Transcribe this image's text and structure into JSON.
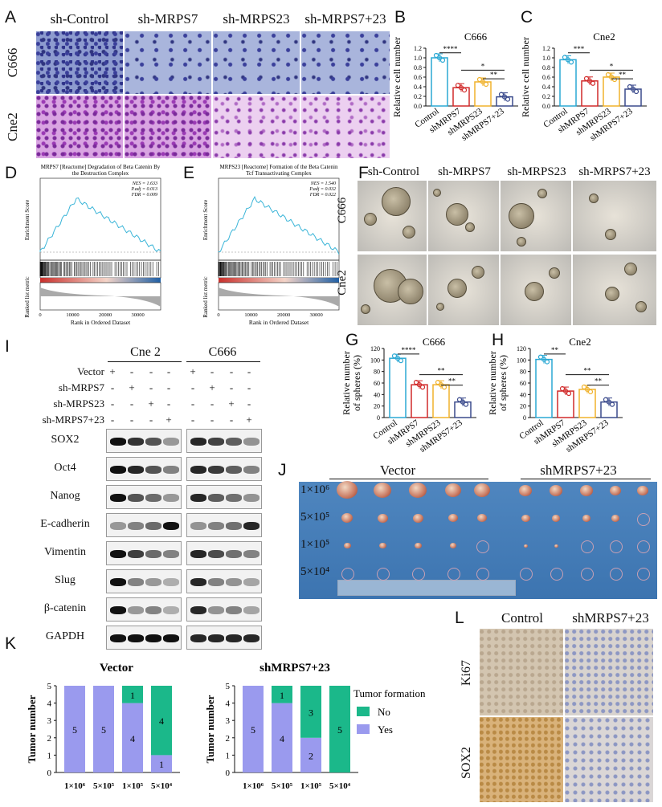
{
  "panels": {
    "A": {
      "letter": "A",
      "cols": [
        "sh-Control",
        "sh-MRPS7",
        "sh-MRPS23",
        "sh-MRPS7+23"
      ],
      "rows": [
        "C666",
        "Cne2"
      ]
    },
    "B": {
      "letter": "B",
      "title": "C666",
      "ylabel": "Relative cell number",
      "yticks": [
        "0.0",
        "0.2",
        "0.4",
        "0.6",
        "0.8",
        "1.0",
        "1.2"
      ],
      "categories": [
        "Control",
        "shMRPS7",
        "shMRPS23",
        "shMRPS7+23"
      ],
      "values": [
        1.0,
        0.38,
        0.5,
        0.19
      ],
      "sig": [
        "****",
        "*",
        "**"
      ]
    },
    "C": {
      "letter": "C",
      "title": "Cne2",
      "ylabel": "Relative cell number",
      "yticks": [
        "0.0",
        "0.2",
        "0.4",
        "0.6",
        "0.8",
        "1.0",
        "1.2"
      ],
      "categories": [
        "Control",
        "shMRPS7",
        "shMRPS23",
        "shMRPS7+23"
      ],
      "values": [
        0.96,
        0.52,
        0.6,
        0.35
      ],
      "sig": [
        "***",
        "*",
        "**"
      ]
    },
    "D": {
      "letter": "D",
      "title1": "MRPS7 [Reactome] Degradation of Beta Catenin By",
      "title2": "the Destruction Complex",
      "nes": "NES = 1.633",
      "padj": "P.adj = 0.013",
      "fdr": "FDR = 0.009",
      "ylabel_top": "Enrichment Score",
      "ylabel_bot": "Ranked list metric",
      "xlabel": "Rank in Ordered Dataset"
    },
    "E": {
      "letter": "E",
      "title1": "MRPS23 [Reactome] Formation of the Beta Catenin",
      "title2": "Tcf Transactivating Complex",
      "nes": "NES = 1.540",
      "padj": "P.adj = 0.032",
      "fdr": "FDR = 0.022",
      "ylabel_top": "Enrichment Score",
      "ylabel_bot": "Ranked list metric",
      "xlabel": "Rank in Ordered Dataset"
    },
    "F": {
      "letter": "F",
      "cols": [
        "sh-Control",
        "sh-MRPS7",
        "sh-MRPS23",
        "sh-MRPS7+23"
      ],
      "rows": [
        "C666",
        "Cne2"
      ]
    },
    "G": {
      "letter": "G",
      "title": "C666",
      "ylabel1": "Relative number",
      "ylabel2": "of spheres (%)",
      "yticks": [
        "0",
        "20",
        "40",
        "60",
        "80",
        "100",
        "120"
      ],
      "categories": [
        "Control",
        "shMRPS7",
        "shMRPS23",
        "shMRPS7+23"
      ],
      "values": [
        103,
        57,
        57,
        27
      ],
      "sig": [
        "****",
        "**",
        "**"
      ]
    },
    "H": {
      "letter": "H",
      "title": "Cne2",
      "ylabel1": "Relative number",
      "ylabel2": "of spheres (%)",
      "yticks": [
        "0",
        "20",
        "40",
        "60",
        "80",
        "100",
        "120"
      ],
      "categories": [
        "Control",
        "shMRPS7",
        "shMRPS23",
        "shMRPS7+23"
      ],
      "values": [
        101,
        46,
        49,
        27
      ],
      "sig": [
        "**",
        "**",
        "**"
      ]
    },
    "I": {
      "letter": "I",
      "groups": [
        "Cne 2",
        "C666"
      ],
      "conditions": [
        "Vector",
        "sh-MRPS7",
        "sh-MRPS23",
        "sh-MRPS7+23"
      ],
      "pattern": [
        [
          "+",
          "-",
          "-",
          "-"
        ],
        [
          "-",
          "+",
          "-",
          "-"
        ],
        [
          "-",
          "-",
          "+",
          "-"
        ],
        [
          "-",
          "-",
          "-",
          "+"
        ]
      ],
      "proteins": [
        "SOX2",
        "Oct4",
        "Nanog",
        "E-cadherin",
        "Vimentin",
        "Slug",
        "β-catenin",
        "GAPDH"
      ]
    },
    "J": {
      "letter": "J",
      "groups": [
        "Vector",
        "shMRPS7+23"
      ],
      "doses": [
        "1×10⁶",
        "5×10⁵",
        "1×10⁵",
        "5×10⁴"
      ]
    },
    "K": {
      "letter": "K",
      "ylabel": "Tumor number",
      "yticks": [
        "0",
        "1",
        "2",
        "3",
        "4",
        "5"
      ],
      "legend_title": "Tumor formation",
      "legend": [
        "No",
        "Yes"
      ],
      "charts": [
        {
          "title": "Vector",
          "categories": [
            "1×10⁶",
            "5×10⁵",
            "1×10⁵",
            "5×10⁴"
          ],
          "yes": [
            5,
            5,
            4,
            1
          ],
          "no": [
            0,
            0,
            1,
            4
          ]
        },
        {
          "title": "shMRPS7+23",
          "categories": [
            "1×10⁶",
            "5×10⁵",
            "1×10⁵",
            "5×10⁴"
          ],
          "yes": [
            5,
            4,
            2,
            0
          ],
          "no": [
            0,
            1,
            3,
            5
          ]
        }
      ]
    },
    "L": {
      "letter": "L",
      "cols": [
        "Control",
        "shMRPS7+23"
      ],
      "rows": [
        "Ki67",
        "SOX2"
      ]
    }
  },
  "colors": {
    "control": "#2aa8d4",
    "s7": "#d12a2a",
    "s23": "#f0b22c",
    "s723": "#3a4a8c",
    "yes": "#9a9aee",
    "no": "#1bb88a"
  }
}
